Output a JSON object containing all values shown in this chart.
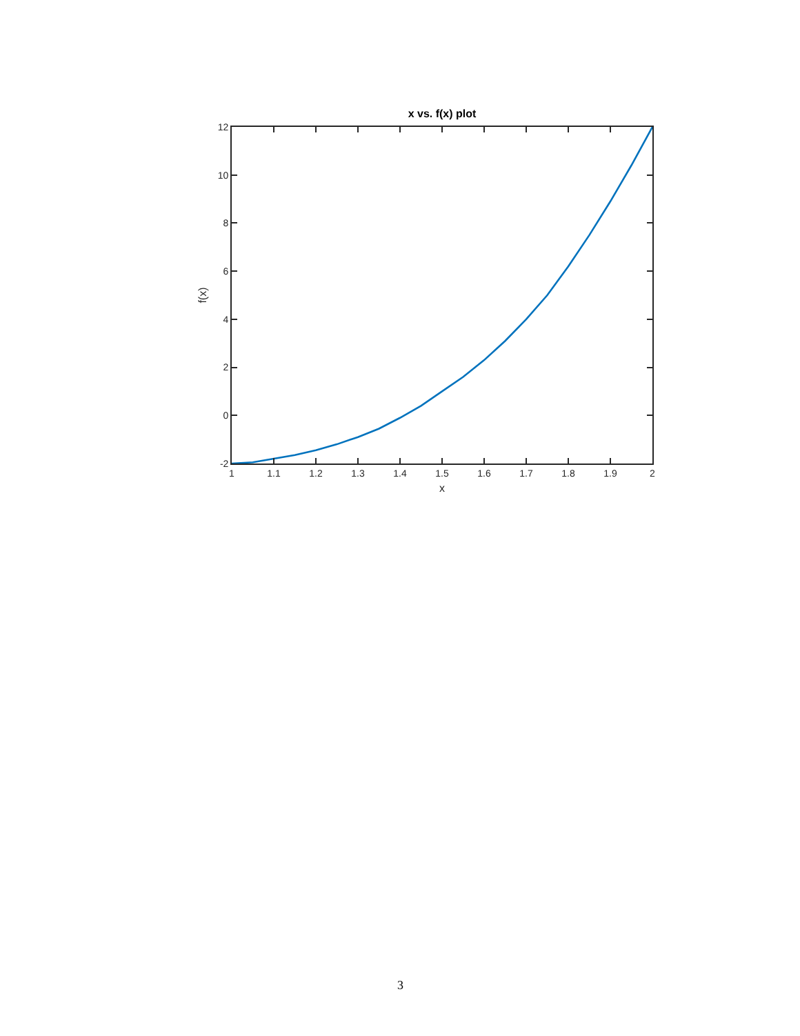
{
  "chart_data": {
    "type": "line",
    "title": "x vs. f(x) plot",
    "xlabel": "x",
    "ylabel": "f(x)",
    "x": [
      1.0,
      1.05,
      1.1,
      1.15,
      1.2,
      1.25,
      1.3,
      1.35,
      1.4,
      1.45,
      1.5,
      1.55,
      1.6,
      1.65,
      1.7,
      1.75,
      1.8,
      1.85,
      1.9,
      1.95,
      2.0
    ],
    "series": [
      {
        "color": "#0072bd",
        "values": [
          -2,
          -1.95,
          -1.8,
          -1.65,
          -1.45,
          -1.2,
          -0.9,
          -0.55,
          -0.1,
          0.4,
          1.0,
          1.6,
          2.3,
          3.1,
          4.0,
          5.0,
          6.2,
          7.5,
          8.9,
          10.4,
          12
        ]
      }
    ],
    "xlim": [
      1,
      2
    ],
    "xticks": [
      1,
      1.1,
      1.2,
      1.3,
      1.4,
      1.5,
      1.6,
      1.7,
      1.8,
      1.9,
      2
    ],
    "ylim": [
      -2,
      12
    ],
    "yticks": [
      -2,
      0,
      2,
      4,
      6,
      8,
      10,
      12
    ],
    "marker": "none",
    "line_style": "solid",
    "annotations": [
      "3"
    ]
  }
}
